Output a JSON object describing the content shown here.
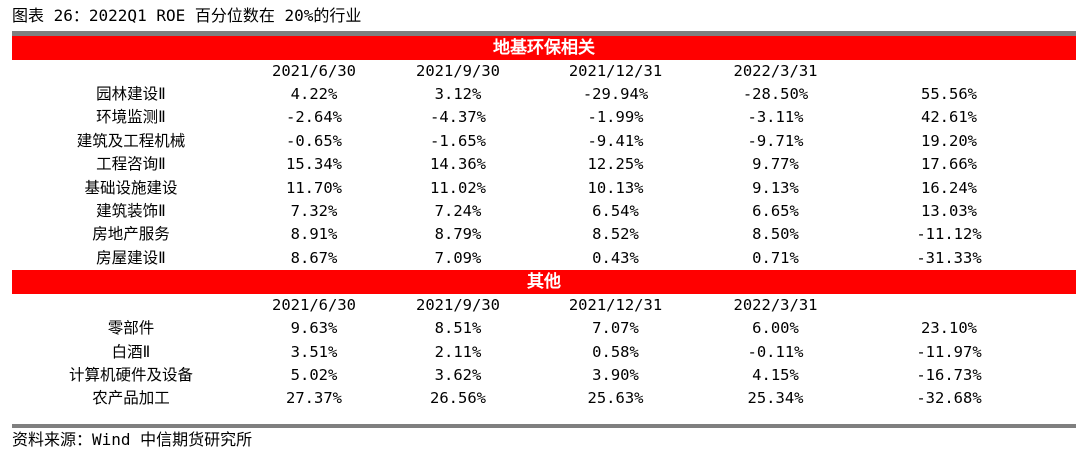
{
  "caption": "图表 26：2022Q1 ROE 百分位数在 20%的行业",
  "source": "资料来源：Wind  中信期货研究所",
  "sections": [
    {
      "title": "地基环保相关",
      "headers": [
        "2021/6/30",
        "2021/9/30",
        "2021/12/31",
        "2022/3/31",
        ""
      ],
      "rows": [
        {
          "name": "园林建设Ⅱ",
          "values": [
            "4.22%",
            "3.12%",
            "-29.94%",
            "-28.50%",
            "55.56%"
          ]
        },
        {
          "name": "环境监测Ⅱ",
          "values": [
            "-2.64%",
            "-4.37%",
            "-1.99%",
            "-3.11%",
            "42.61%"
          ]
        },
        {
          "name": "建筑及工程机械",
          "values": [
            "-0.65%",
            "-1.65%",
            "-9.41%",
            "-9.71%",
            "19.20%"
          ]
        },
        {
          "name": "工程咨询Ⅱ",
          "values": [
            "15.34%",
            "14.36%",
            "12.25%",
            "9.77%",
            "17.66%"
          ]
        },
        {
          "name": "基础设施建设",
          "values": [
            "11.70%",
            "11.02%",
            "10.13%",
            "9.13%",
            "16.24%"
          ]
        },
        {
          "name": "建筑装饰Ⅱ",
          "values": [
            "7.32%",
            "7.24%",
            "6.54%",
            "6.65%",
            "13.03%"
          ]
        },
        {
          "name": "房地产服务",
          "values": [
            "8.91%",
            "8.79%",
            "8.52%",
            "8.50%",
            "-11.12%"
          ]
        },
        {
          "name": "房屋建设Ⅱ",
          "values": [
            "8.67%",
            "7.09%",
            "0.43%",
            "0.71%",
            "-31.33%"
          ]
        }
      ]
    },
    {
      "title": "其他",
      "headers": [
        "2021/6/30",
        "2021/9/30",
        "2021/12/31",
        "2022/3/31",
        ""
      ],
      "rows": [
        {
          "name": "零部件",
          "values": [
            "9.63%",
            "8.51%",
            "7.07%",
            "6.00%",
            "23.10%"
          ]
        },
        {
          "name": "白酒Ⅱ",
          "values": [
            "3.51%",
            "2.11%",
            "0.58%",
            "-0.11%",
            "-11.97%"
          ]
        },
        {
          "name": "计算机硬件及设备",
          "values": [
            "5.02%",
            "3.62%",
            "3.90%",
            "4.15%",
            "-16.73%"
          ]
        },
        {
          "name": "农产品加工",
          "values": [
            "27.37%",
            "26.56%",
            "25.63%",
            "25.34%",
            "-32.68%"
          ]
        }
      ]
    }
  ],
  "colors": {
    "band": "#ff0000",
    "rule": "#7f7f7f"
  }
}
